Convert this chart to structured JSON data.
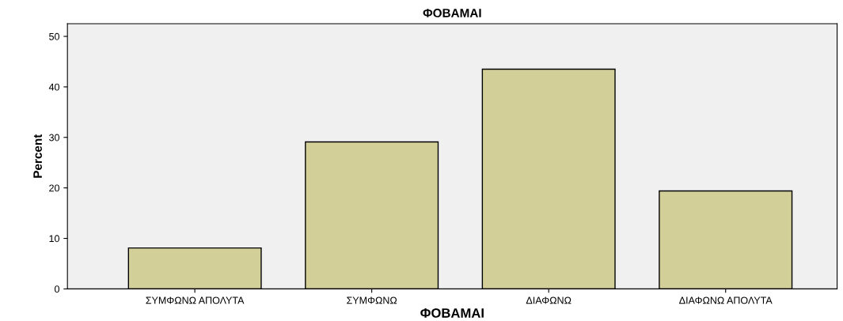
{
  "chart_data": {
    "type": "bar",
    "title": "ΦΟΒΑΜΑΙ",
    "xlabel": "ΦΟΒΑΜΑΙ",
    "ylabel": "Percent",
    "categories": [
      "ΣΥΜΦΩΝΩ ΑΠΟΛΥΤΑ",
      "ΣΥΜΦΩΝΩ",
      "ΔΙΑΦΩΝΩ",
      "ΔΙΑΦΩΝΩ ΑΠΟΛΥΤΑ"
    ],
    "values": [
      8.1,
      29.1,
      43.5,
      19.4
    ],
    "color": "#d3cf98",
    "ylim": [
      0,
      52.5
    ],
    "yticks": [
      0,
      10,
      20,
      30,
      40,
      50
    ],
    "grid": false,
    "legend": false
  }
}
